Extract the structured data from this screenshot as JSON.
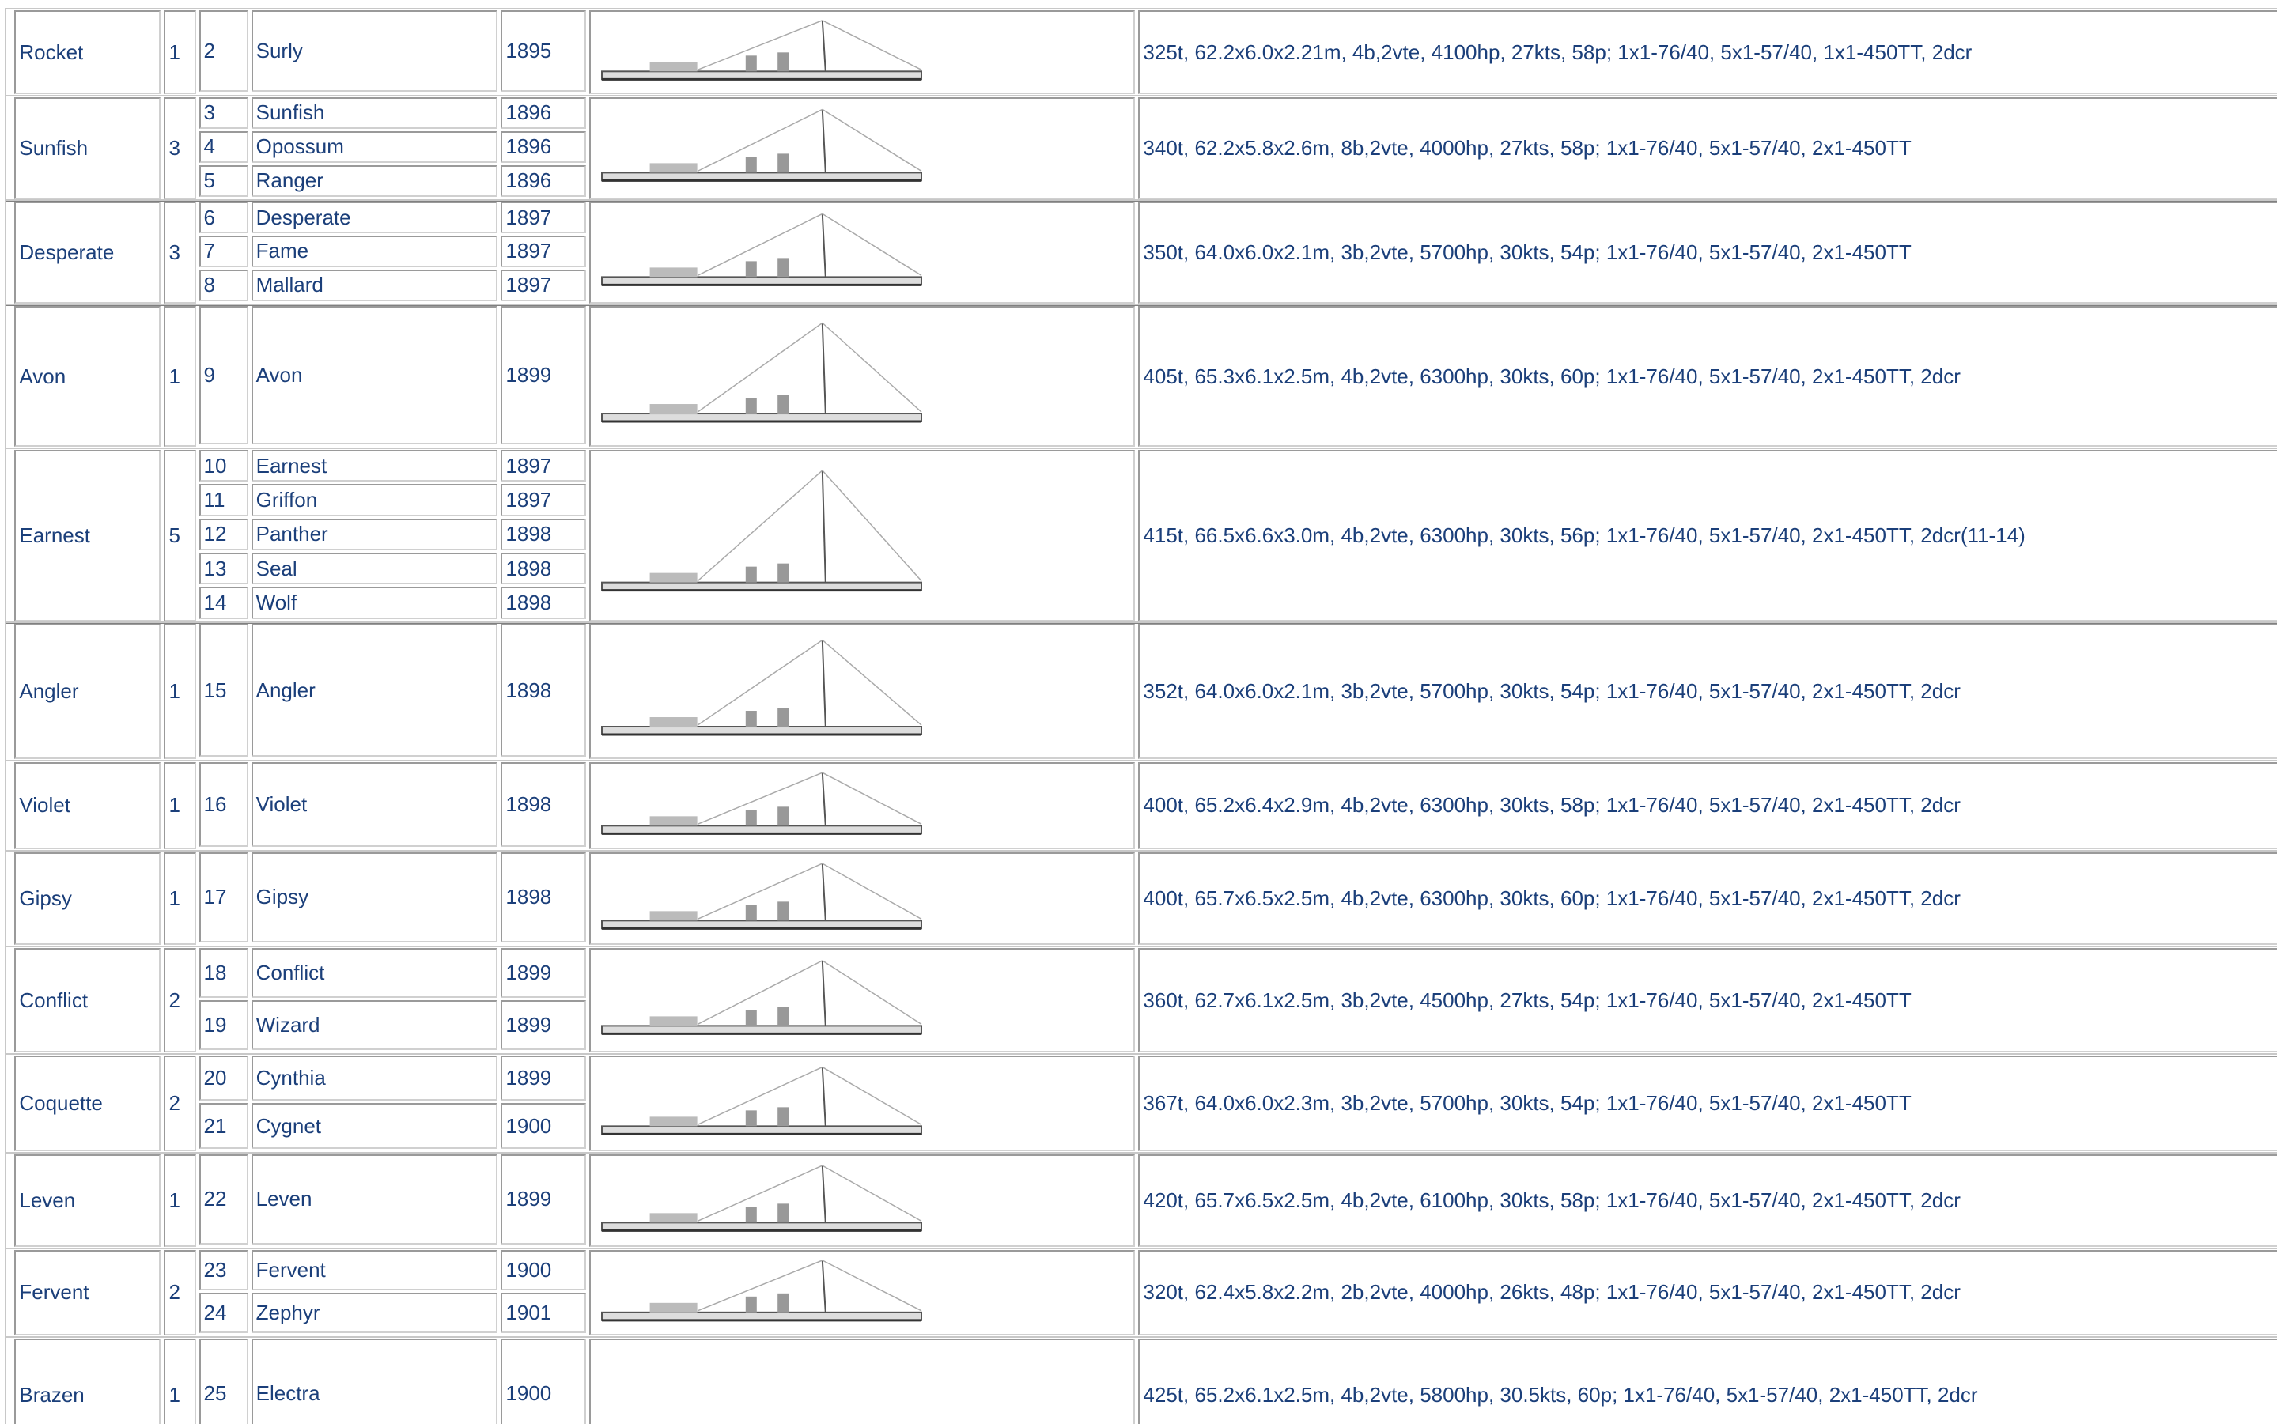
{
  "rows": [
    {
      "class": "Rocket",
      "count": "1",
      "ships": [
        {
          "no": "2",
          "name": "Surly",
          "year": "1895"
        }
      ],
      "specs": "325t, 62.2x6.0x2.21m, 4b,2vte, 4100hp, 27kts, 58p; 1x1-76/40, 5x1-57/40, 1x1-450TT, 2dcr"
    },
    {
      "class": "Sunfish",
      "count": "3",
      "ships": [
        {
          "no": "3",
          "name": "Sunfish",
          "year": "1896"
        },
        {
          "no": "4",
          "name": "Opossum",
          "year": "1896"
        },
        {
          "no": "5",
          "name": "Ranger",
          "year": "1896"
        }
      ],
      "specs": "340t, 62.2x5.8x2.6m, 8b,2vte, 4000hp, 27kts, 58p; 1x1-76/40, 5x1-57/40, 2x1-450TT"
    },
    {
      "class": "Desperate",
      "count": "3",
      "ships": [
        {
          "no": "6",
          "name": "Desperate",
          "year": "1897"
        },
        {
          "no": "7",
          "name": "Fame",
          "year": "1897"
        },
        {
          "no": "8",
          "name": "Mallard",
          "year": "1897"
        }
      ],
      "specs": "350t, 64.0x6.0x2.1m, 3b,2vte, 5700hp, 30kts, 54p; 1x1-76/40, 5x1-57/40, 2x1-450TT"
    },
    {
      "class": "Avon",
      "count": "1",
      "ships": [
        {
          "no": "9",
          "name": "Avon",
          "year": "1899"
        }
      ],
      "specs": "405t, 65.3x6.1x2.5m, 4b,2vte, 6300hp, 30kts, 60p; 1x1-76/40, 5x1-57/40, 2x1-450TT, 2dcr"
    },
    {
      "class": "Earnest",
      "count": "5",
      "ships": [
        {
          "no": "10",
          "name": "Earnest",
          "year": "1897"
        },
        {
          "no": "11",
          "name": "Griffon",
          "year": "1897"
        },
        {
          "no": "12",
          "name": "Panther",
          "year": "1898"
        },
        {
          "no": "13",
          "name": "Seal",
          "year": "1898"
        },
        {
          "no": "14",
          "name": "Wolf",
          "year": "1898"
        }
      ],
      "specs": "415t, 66.5x6.6x3.0m, 4b,2vte, 6300hp, 30kts, 56p; 1x1-76/40, 5x1-57/40, 2x1-450TT, 2dcr(11-14)"
    },
    {
      "class": "Angler",
      "count": "1",
      "ships": [
        {
          "no": "15",
          "name": "Angler",
          "year": "1898"
        }
      ],
      "specs": "352t, 64.0x6.0x2.1m, 3b,2vte, 5700hp, 30kts, 54p; 1x1-76/40, 5x1-57/40, 2x1-450TT, 2dcr"
    },
    {
      "class": "Violet",
      "count": "1",
      "ships": [
        {
          "no": "16",
          "name": "Violet",
          "year": "1898"
        }
      ],
      "specs": "400t, 65.2x6.4x2.9m, 4b,2vte, 6300hp, 30kts, 58p; 1x1-76/40, 5x1-57/40, 2x1-450TT, 2dcr"
    },
    {
      "class": "Gipsy",
      "count": "1",
      "ships": [
        {
          "no": "17",
          "name": "Gipsy",
          "year": "1898"
        }
      ],
      "specs": "400t, 65.7x6.5x2.5m, 4b,2vte, 6300hp, 30kts, 60p; 1x1-76/40, 5x1-57/40, 2x1-450TT, 2dcr"
    },
    {
      "class": "Conflict",
      "count": "2",
      "ships": [
        {
          "no": "18",
          "name": "Conflict",
          "year": "1899"
        },
        {
          "no": "19",
          "name": "Wizard",
          "year": "1899"
        }
      ],
      "specs": "360t, 62.7x6.1x2.5m, 3b,2vte, 4500hp, 27kts, 54p; 1x1-76/40, 5x1-57/40, 2x1-450TT"
    },
    {
      "class": "Coquette",
      "count": "2",
      "ships": [
        {
          "no": "20",
          "name": "Cynthia",
          "year": "1899"
        },
        {
          "no": "21",
          "name": "Cygnet",
          "year": "1900"
        }
      ],
      "specs": "367t, 64.0x6.0x2.3m, 3b,2vte, 5700hp, 30kts, 54p; 1x1-76/40, 5x1-57/40, 2x1-450TT"
    },
    {
      "class": "Leven",
      "count": "1",
      "ships": [
        {
          "no": "22",
          "name": "Leven",
          "year": "1899"
        }
      ],
      "specs": "420t, 65.7x6.5x2.5m, 4b,2vte, 6100hp, 30kts, 58p; 1x1-76/40, 5x1-57/40, 2x1-450TT, 2dcr"
    },
    {
      "class": "Fervent",
      "count": "2",
      "ships": [
        {
          "no": "23",
          "name": "Fervent",
          "year": "1900"
        },
        {
          "no": "24",
          "name": "Zephyr",
          "year": "1901"
        }
      ],
      "specs": "320t, 62.4x5.8x2.2m, 2b,2vte, 4000hp, 26kts, 48p; 1x1-76/40, 5x1-57/40, 2x1-450TT, 2dcr"
    },
    {
      "class": "Brazen",
      "count": "1",
      "ships": [
        {
          "no": "25",
          "name": "Electra",
          "year": "1900"
        }
      ],
      "specs": "425t, 65.2x6.1x2.5m, 4b,2vte, 5800hp, 30.5kts, 60p; 1x1-76/40, 5x1-57/40, 2x1-450TT, 2dcr"
    }
  ]
}
